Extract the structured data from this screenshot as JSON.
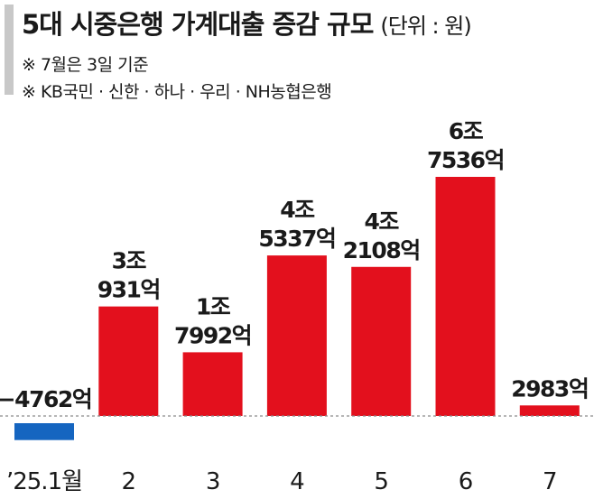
{
  "header": {
    "title": "5대 시중은행 가계대출 증감 규모",
    "unit": "(단위 : 원)",
    "notes": [
      "※ 7월은 3일 기준",
      "※ KB국민 · 신한 · 하나 · 우리 · NH농협은행"
    ]
  },
  "chart_data": {
    "type": "bar",
    "title": "5대 시중은행 가계대출 증감 규모",
    "categories": [
      "’25.1월",
      "2",
      "3",
      "4",
      "5",
      "6",
      "7"
    ],
    "values": [
      -4762,
      30931,
      17992,
      45337,
      42108,
      67536,
      2983
    ],
    "value_unit": "억원",
    "data_labels": [
      [
        "−4762억"
      ],
      [
        "3조",
        "931억"
      ],
      [
        "1조",
        "7992억"
      ],
      [
        "4조",
        "5337억"
      ],
      [
        "4조",
        "2108억"
      ],
      [
        "6조",
        "7536억"
      ],
      [
        "2983억"
      ]
    ],
    "colors": {
      "positive": "#e3101d",
      "negative": "#1565c0",
      "baseline": "#8a8a8a",
      "text": "#1a1a1a",
      "title_bar": "#c8c8c8"
    },
    "grid": false,
    "legend": "none"
  }
}
